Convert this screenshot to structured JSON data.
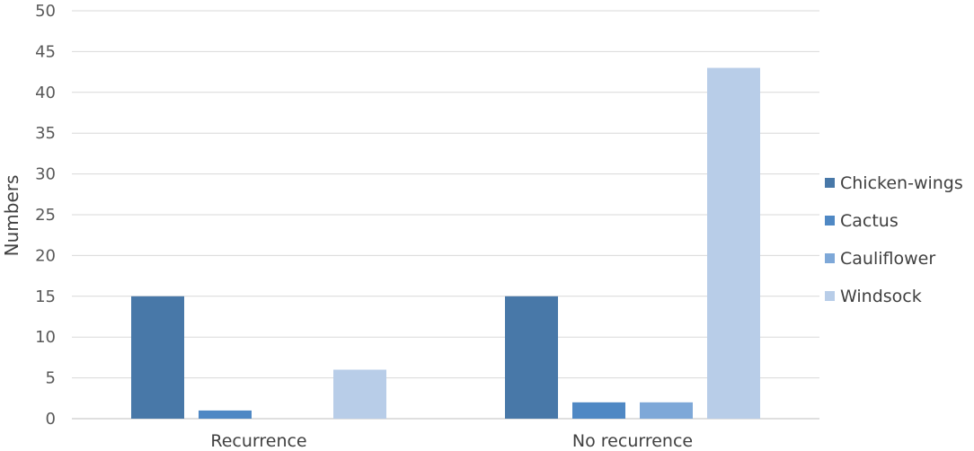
{
  "chart_data": {
    "type": "bar",
    "categories": [
      "Recurrence",
      "No recurrence"
    ],
    "series": [
      {
        "name": "Chicken-wings",
        "color": "#4878a8",
        "values": [
          15,
          15
        ]
      },
      {
        "name": "Cactus",
        "color": "#4f88c4",
        "values": [
          1,
          2
        ]
      },
      {
        "name": "Cauliflower",
        "color": "#7ea8d8",
        "values": [
          0,
          2
        ]
      },
      {
        "name": "Windsock",
        "color": "#b8cde8",
        "values": [
          6,
          43
        ]
      }
    ],
    "ylabel": "Numbers",
    "ylim": [
      0,
      50
    ],
    "yticks": [
      0,
      5,
      10,
      15,
      20,
      25,
      30,
      35,
      40,
      45,
      50
    ],
    "grid": true,
    "legend": "right"
  }
}
